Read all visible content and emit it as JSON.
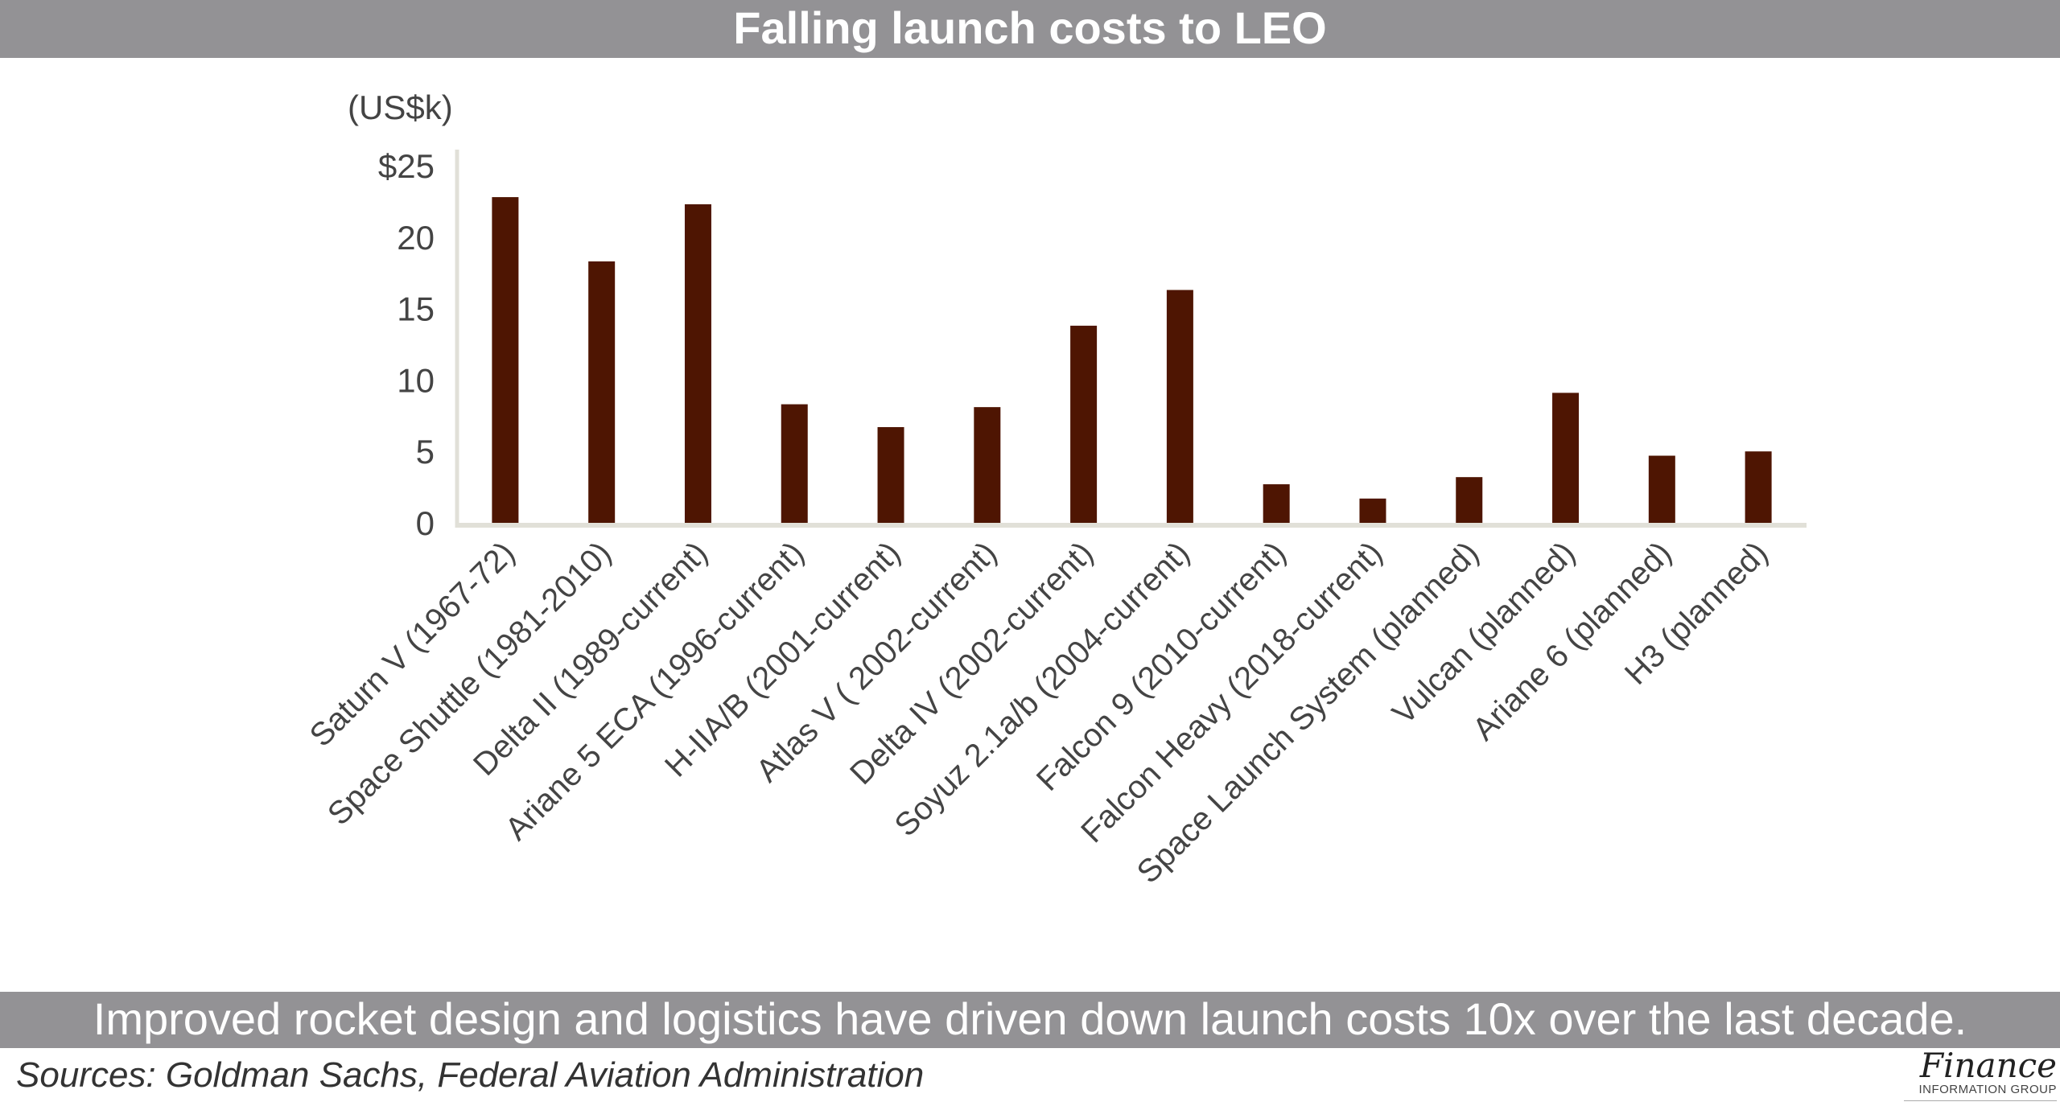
{
  "title": "Falling launch costs to LEO",
  "footer_banner": "Improved rocket design and logistics have driven down launch costs 10x over the last decade.",
  "sources": "Sources: Goldman Sachs, Federal Aviation Administration",
  "logo": {
    "word": "Finance",
    "sub": "INFORMATION GROUP"
  },
  "colors": {
    "bar": "#4e1502",
    "banner": "#939295",
    "axis": "#e1e0d8"
  },
  "chart_data": {
    "type": "bar",
    "title": "Falling launch costs to LEO",
    "ylabel": "(US$k)",
    "xlabel": "",
    "ylim": [
      0,
      25
    ],
    "yticks": [
      0,
      5,
      10,
      15,
      20,
      25
    ],
    "ytick_labels": [
      "0",
      "5",
      "10",
      "15",
      "20",
      "$25"
    ],
    "grid": false,
    "categories": [
      "Saturn V (1967-72)",
      "Space Shuttle (1981-2010)",
      "Delta II (1989-current)",
      "Ariane 5 ECA (1996-current)",
      "H-IIA/B (2001-current)",
      "Atlas V ( 2002-current)",
      "Delta IV (2002-current)",
      "Soyuz 2.1a/b (2004-current)",
      "Falcon 9 (2010-current)",
      "Falcon Heavy (2018-current)",
      "Space Launch System (planned)",
      "Vulcan (planned)",
      "Ariane 6 (planned)",
      "H3 (planned)"
    ],
    "values": [
      22.8,
      18.3,
      22.3,
      8.3,
      6.7,
      8.1,
      13.8,
      16.3,
      2.7,
      1.7,
      3.2,
      9.1,
      4.7,
      5.0
    ]
  }
}
